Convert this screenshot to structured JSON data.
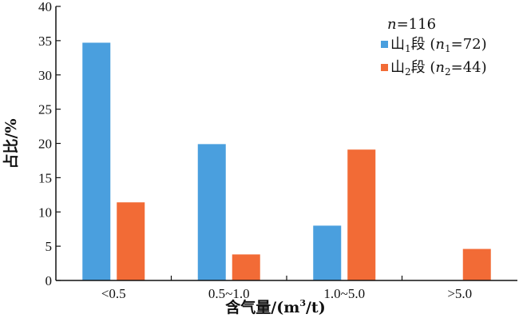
{
  "chart_data": {
    "type": "bar",
    "categories": [
      "<0.5",
      "0.5~1.0",
      "1.0~5.0",
      ">5.0"
    ],
    "series": [
      {
        "name": "山1段 (n1=72)",
        "values": [
          34.7,
          19.9,
          8.0,
          0
        ],
        "color": "#4a9fde"
      },
      {
        "name": "山2段 (n2=44)",
        "values": [
          11.4,
          3.8,
          19.1,
          4.6
        ],
        "color": "#f26b36"
      }
    ],
    "ylim": [
      0,
      40
    ],
    "yticks": [
      0,
      5,
      10,
      15,
      20,
      25,
      30,
      35,
      40
    ],
    "ylabel": "占比/%",
    "xlabel_main": "含气量/(m",
    "xlabel_sup": "3",
    "xlabel_tail": "/t)",
    "legend": {
      "total_var": "n",
      "total_value": "=116",
      "items": [
        {
          "prefix": "山",
          "sub": "1",
          "suffix": "段 (",
          "var": "n",
          "var_sub": "1",
          "value": "=72)"
        },
        {
          "prefix": "山",
          "sub": "2",
          "suffix": "段 (",
          "var": "n",
          "var_sub": "2",
          "value": "=44)"
        }
      ]
    }
  }
}
